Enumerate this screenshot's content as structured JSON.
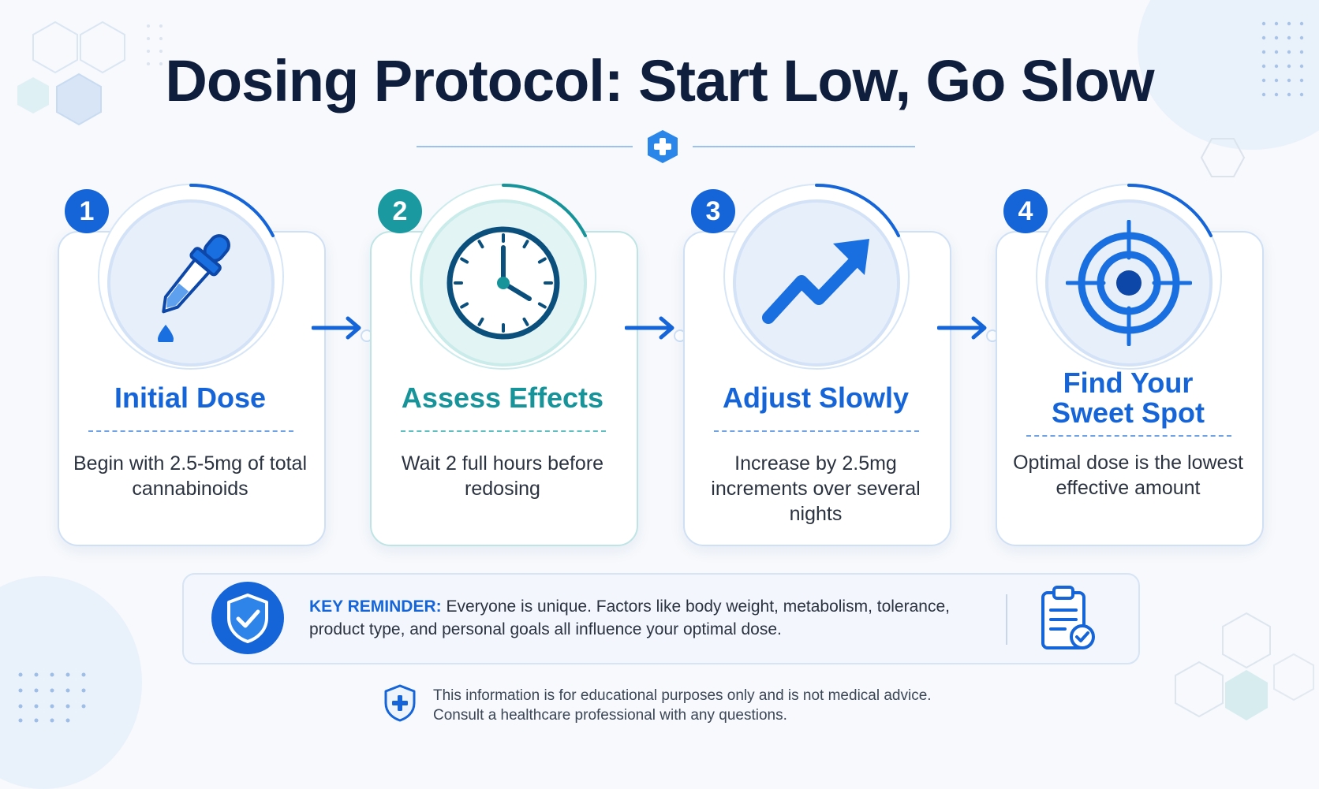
{
  "title": "Dosing Protocol: Start Low, Go Slow",
  "colors": {
    "blue": "#1565d8",
    "teal": "#17949a",
    "navy": "#0f1e3c"
  },
  "steps": [
    {
      "number": "1",
      "title": "Initial Dose",
      "body": "Begin with 2.5-5mg of total cannabinoids",
      "icon": "dropper-icon",
      "accent": "blue"
    },
    {
      "number": "2",
      "title": "Assess Effects",
      "body": "Wait 2 full hours before redosing",
      "icon": "clock-icon",
      "accent": "teal"
    },
    {
      "number": "3",
      "title": "Adjust Slowly",
      "body": "Increase by 2.5mg increments over several nights",
      "icon": "trend-up-arrow-icon",
      "accent": "blue"
    },
    {
      "number": "4",
      "title": "Find Your Sweet Spot",
      "body": "Optimal dose is the lowest effective amount",
      "icon": "target-icon",
      "accent": "blue"
    }
  ],
  "reminder": {
    "label": "KEY REMINDER:",
    "text": "Everyone is unique. Factors like body weight, metabolism, tolerance, product type, and personal goals all influence your optimal dose.",
    "icons": [
      "shield-check-icon",
      "clipboard-check-icon"
    ]
  },
  "disclaimer": {
    "line1": "This information is for educational purposes only and is not medical advice.",
    "line2": "Consult a healthcare professional with any questions.",
    "icon": "shield-cross-icon"
  }
}
